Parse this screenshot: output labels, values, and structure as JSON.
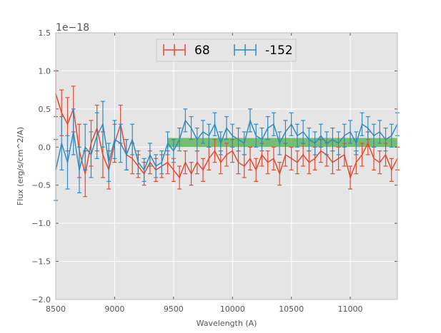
{
  "chart_data": {
    "type": "line",
    "xlabel": "Wavelength (A)",
    "ylabel": "Flux (erg/s/cm^2/A)",
    "offset_text": "1e−18",
    "xlim": [
      8500,
      11400
    ],
    "ylim": [
      -2.0,
      1.5
    ],
    "xticks": [
      8500,
      9000,
      9500,
      10000,
      10500,
      11000
    ],
    "xtick_labels": [
      "8500",
      "9000",
      "9500",
      "10000",
      "10500",
      "11000"
    ],
    "yticks": [
      -2.0,
      -1.5,
      -1.0,
      -0.5,
      0.0,
      0.5,
      1.0,
      1.5
    ],
    "ytick_labels": [
      "−2.0",
      "−1.5",
      "−1.0",
      "−0.5",
      "0.0",
      "0.5",
      "1.0",
      "1.5"
    ],
    "grid": true,
    "legend_position": "top-center",
    "band": {
      "x0": 9450,
      "x1": 11400,
      "y0": 0.0,
      "y1": 0.12,
      "color": "#4daf4a"
    },
    "series": [
      {
        "name": "68",
        "color": "#e24a33",
        "x": [
          8500,
          8550,
          8600,
          8650,
          8700,
          8750,
          8800,
          8850,
          8900,
          8950,
          9000,
          9050,
          9100,
          9150,
          9200,
          9250,
          9300,
          9350,
          9400,
          9450,
          9500,
          9550,
          9600,
          9650,
          9700,
          9750,
          9800,
          9850,
          9900,
          9950,
          10000,
          10050,
          10100,
          10150,
          10200,
          10250,
          10300,
          10350,
          10400,
          10450,
          10500,
          10550,
          10600,
          10650,
          10700,
          10750,
          10800,
          10850,
          10900,
          10950,
          11000,
          11050,
          11100,
          11150,
          11200,
          11250,
          11300,
          11350,
          11400
        ],
        "y": [
          0.7,
          0.45,
          0.3,
          0.5,
          -0.05,
          -0.35,
          0.05,
          0.25,
          -0.1,
          -0.3,
          0.05,
          0.3,
          -0.1,
          -0.15,
          -0.25,
          -0.35,
          -0.2,
          -0.3,
          -0.25,
          -0.2,
          -0.3,
          -0.4,
          -0.2,
          -0.35,
          -0.2,
          -0.3,
          -0.15,
          -0.05,
          -0.2,
          -0.1,
          -0.05,
          -0.2,
          -0.25,
          -0.15,
          -0.3,
          -0.1,
          -0.2,
          -0.15,
          -0.35,
          -0.1,
          -0.15,
          -0.2,
          -0.1,
          -0.2,
          -0.15,
          -0.05,
          -0.1,
          -0.2,
          -0.15,
          -0.1,
          -0.4,
          -0.2,
          -0.1,
          0.05,
          -0.15,
          -0.2,
          -0.1,
          -0.3,
          -0.15
        ],
        "err": [
          0.3,
          0.3,
          0.35,
          0.3,
          0.35,
          0.3,
          0.3,
          0.3,
          0.3,
          0.25,
          0.25,
          0.25,
          0.2,
          0.2,
          0.15,
          0.15,
          0.15,
          0.15,
          0.15,
          0.15,
          0.15,
          0.15,
          0.15,
          0.15,
          0.15,
          0.15,
          0.15,
          0.15,
          0.15,
          0.15,
          0.15,
          0.15,
          0.15,
          0.15,
          0.15,
          0.15,
          0.15,
          0.15,
          0.15,
          0.15,
          0.15,
          0.15,
          0.15,
          0.15,
          0.15,
          0.15,
          0.15,
          0.15,
          0.15,
          0.15,
          0.15,
          0.15,
          0.15,
          0.15,
          0.15,
          0.15,
          0.15,
          0.15,
          0.15
        ]
      },
      {
        "name": "-152",
        "color": "#348abd",
        "x": [
          8500,
          8550,
          8600,
          8650,
          8700,
          8750,
          8800,
          8850,
          8900,
          8950,
          9000,
          9050,
          9100,
          9150,
          9200,
          9250,
          9300,
          9350,
          9400,
          9450,
          9500,
          9550,
          9600,
          9650,
          9700,
          9750,
          9800,
          9850,
          9900,
          9950,
          10000,
          10050,
          10100,
          10150,
          10200,
          10250,
          10300,
          10350,
          10400,
          10450,
          10500,
          10550,
          10600,
          10650,
          10700,
          10750,
          10800,
          10850,
          10900,
          10950,
          11000,
          11050,
          11100,
          11150,
          11200,
          11250,
          11300,
          11350,
          11400
        ],
        "y": [
          -0.3,
          0.05,
          -0.2,
          0.2,
          -0.3,
          0.0,
          -0.1,
          0.15,
          0.3,
          -0.2,
          0.1,
          0.05,
          -0.1,
          0.1,
          -0.2,
          -0.3,
          -0.1,
          -0.25,
          -0.2,
          0.05,
          -0.05,
          0.1,
          0.35,
          0.25,
          0.1,
          0.2,
          0.15,
          0.3,
          0.05,
          0.25,
          0.15,
          0.1,
          0.05,
          0.35,
          0.15,
          0.1,
          0.25,
          0.3,
          0.05,
          0.2,
          0.3,
          0.15,
          0.2,
          0.1,
          0.05,
          0.15,
          0.05,
          0.1,
          0.05,
          0.15,
          0.2,
          0.05,
          0.3,
          0.25,
          0.15,
          0.2,
          0.1,
          0.15,
          0.3
        ],
        "err": [
          0.4,
          0.35,
          0.35,
          0.3,
          0.3,
          0.3,
          0.3,
          0.3,
          0.3,
          0.25,
          0.25,
          0.25,
          0.2,
          0.2,
          0.15,
          0.15,
          0.15,
          0.15,
          0.15,
          0.15,
          0.15,
          0.15,
          0.15,
          0.15,
          0.15,
          0.15,
          0.15,
          0.15,
          0.15,
          0.15,
          0.15,
          0.15,
          0.15,
          0.15,
          0.15,
          0.15,
          0.15,
          0.15,
          0.15,
          0.15,
          0.15,
          0.15,
          0.15,
          0.15,
          0.15,
          0.15,
          0.15,
          0.15,
          0.15,
          0.15,
          0.15,
          0.15,
          0.15,
          0.15,
          0.15,
          0.15,
          0.15,
          0.15,
          0.15
        ]
      }
    ]
  }
}
